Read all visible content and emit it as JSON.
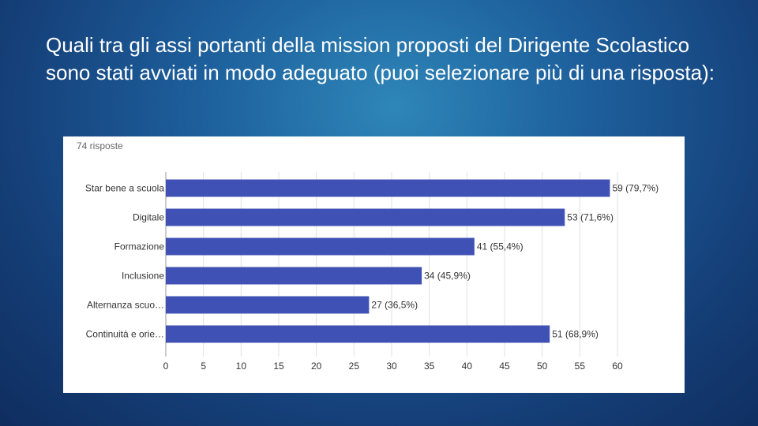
{
  "slide": {
    "title": "Quali tra gli assi portanti della mission proposti del Dirigente Scolastico sono stati avviati in modo adeguato (puoi selezionare più di una risposta):"
  },
  "chart": {
    "responses_label": "74 risposte"
  },
  "colors": {
    "bar": "#3f51b5",
    "grid": "#e0e0e0",
    "axis_text": "#333333",
    "label_text": "#333333"
  },
  "chart_data": {
    "type": "bar",
    "orientation": "horizontal",
    "categories": [
      "Star bene a scuola",
      "Digitale",
      "Formazione",
      "Inclusione",
      "Alternanza scuo…",
      "Continuità e orie…"
    ],
    "values": [
      59,
      53,
      41,
      34,
      27,
      51
    ],
    "data_labels": [
      "59 (79,7%)",
      "53 (71,6%)",
      "41 (55,4%)",
      "34 (45,9%)",
      "27 (36,5%)",
      "51 (68,9%)"
    ],
    "xlim": [
      0,
      60
    ],
    "xticks": [
      0,
      5,
      10,
      15,
      20,
      25,
      30,
      35,
      40,
      45,
      50,
      55,
      60
    ],
    "grid": true
  }
}
